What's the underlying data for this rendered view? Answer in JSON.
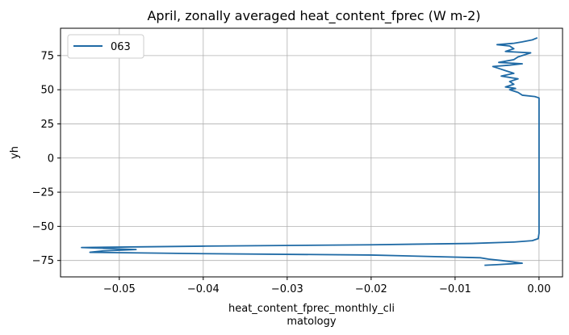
{
  "chart_data": {
    "type": "line",
    "title": "April, zonally averaged heat_content_fprec (W m-2)",
    "xlabel_lines": [
      "heat_content_fprec_monthly_cli",
      "matology"
    ],
    "ylabel": "yh",
    "xlim": [
      -0.057,
      0.0028
    ],
    "ylim": [
      -87,
      95
    ],
    "xticks": [
      -0.05,
      -0.04,
      -0.03,
      -0.02,
      -0.01,
      0.0
    ],
    "xtick_labels": [
      "−0.05",
      "−0.04",
      "−0.03",
      "−0.02",
      "−0.01",
      "0.00"
    ],
    "yticks": [
      -75,
      -50,
      -25,
      0,
      25,
      50,
      75
    ],
    "ytick_labels": [
      "−75",
      "−50",
      "−25",
      "0",
      "25",
      "50",
      "75"
    ],
    "grid": true,
    "legend": {
      "position": "upper-left"
    },
    "series": [
      {
        "name": "063",
        "color": "#1f6aa5",
        "points": [
          [
            -0.0065,
            -78.5
          ],
          [
            -0.0048,
            -78.0
          ],
          [
            -0.0035,
            -77.5
          ],
          [
            -0.002,
            -77.0
          ],
          [
            -0.0032,
            -76.0
          ],
          [
            -0.0045,
            -75.0
          ],
          [
            -0.006,
            -74.0
          ],
          [
            -0.007,
            -73.0
          ],
          [
            -0.02,
            -71.0
          ],
          [
            -0.04,
            -70.0
          ],
          [
            -0.0535,
            -69.0
          ],
          [
            -0.052,
            -68.0
          ],
          [
            -0.048,
            -67.0
          ],
          [
            -0.0545,
            -65.5
          ],
          [
            -0.04,
            -64.5
          ],
          [
            -0.02,
            -63.5
          ],
          [
            -0.008,
            -62.5
          ],
          [
            -0.003,
            -61.5
          ],
          [
            -0.0008,
            -60.5
          ],
          [
            -0.0001,
            -59.0
          ],
          [
            0.0,
            -55.0
          ],
          [
            0.0,
            0.0
          ],
          [
            0.0,
            44.0
          ],
          [
            -0.0005,
            45.0
          ],
          [
            -0.002,
            46.0
          ],
          [
            -0.0025,
            48.0
          ],
          [
            -0.0035,
            50.0
          ],
          [
            -0.0028,
            51.0
          ],
          [
            -0.004,
            52.0
          ],
          [
            -0.003,
            54.0
          ],
          [
            -0.0035,
            56.0
          ],
          [
            -0.0025,
            58.0
          ],
          [
            -0.0045,
            60.0
          ],
          [
            -0.003,
            62.0
          ],
          [
            -0.004,
            64.0
          ],
          [
            -0.005,
            66.0
          ],
          [
            -0.0055,
            67.0
          ],
          [
            -0.0035,
            68.0
          ],
          [
            -0.002,
            69.0
          ],
          [
            -0.0048,
            70.0
          ],
          [
            -0.003,
            72.0
          ],
          [
            -0.0025,
            74.0
          ],
          [
            -0.0015,
            76.0
          ],
          [
            -0.001,
            77.0
          ],
          [
            -0.004,
            78.0
          ],
          [
            -0.003,
            80.0
          ],
          [
            -0.0035,
            82.0
          ],
          [
            -0.005,
            83.0
          ],
          [
            -0.003,
            84.0
          ],
          [
            -0.002,
            85.0
          ],
          [
            -0.0008,
            86.5
          ],
          [
            -0.0002,
            88.0
          ]
        ]
      }
    ]
  }
}
